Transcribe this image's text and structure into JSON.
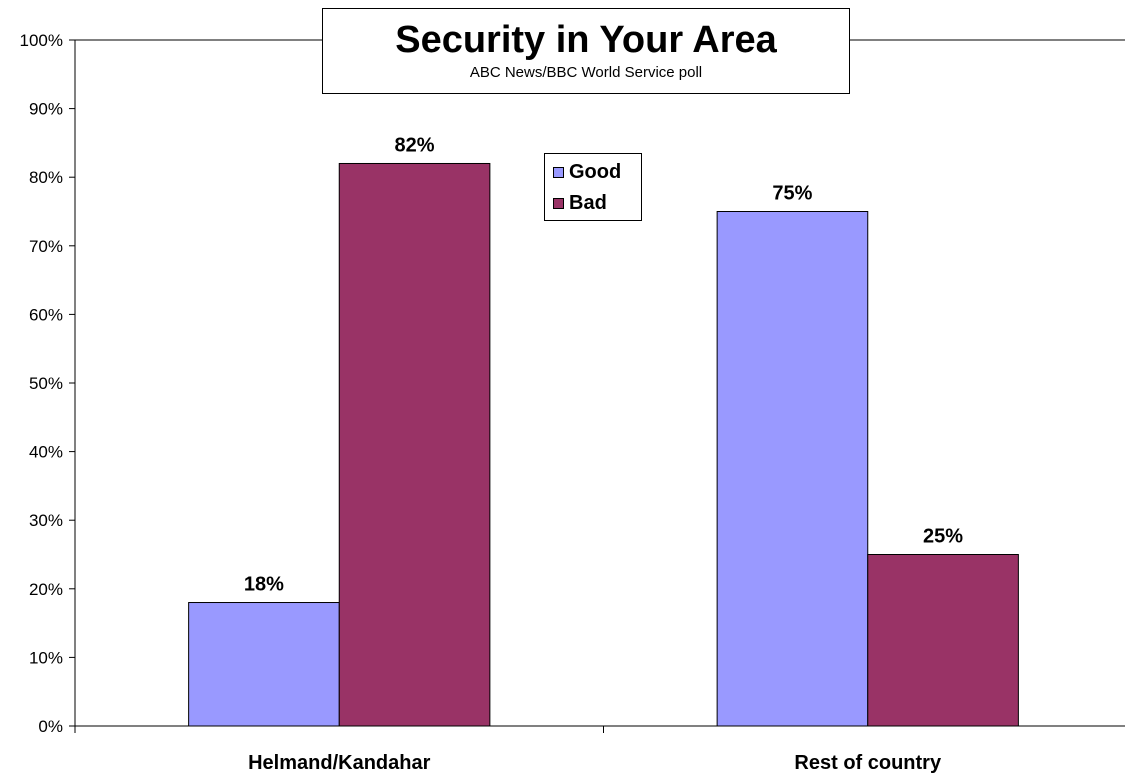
{
  "chart_data": {
    "type": "bar",
    "title": "Security in Your Area",
    "subtitle": "ABC News/BBC World Service poll",
    "categories": [
      "Helmand/Kandahar",
      "Rest of country"
    ],
    "series": [
      {
        "name": "Good",
        "values": [
          18,
          75
        ],
        "labels": [
          "18%",
          "75%"
        ],
        "color": "#9999FF"
      },
      {
        "name": "Bad",
        "values": [
          82,
          25
        ],
        "labels": [
          "82%",
          "25%"
        ],
        "color": "#993366"
      }
    ],
    "ylim": [
      0,
      100
    ],
    "yticks": [
      "0%",
      "10%",
      "20%",
      "30%",
      "40%",
      "50%",
      "60%",
      "70%",
      "80%",
      "90%",
      "100%"
    ],
    "legend_position": "top-center",
    "grid": false
  }
}
